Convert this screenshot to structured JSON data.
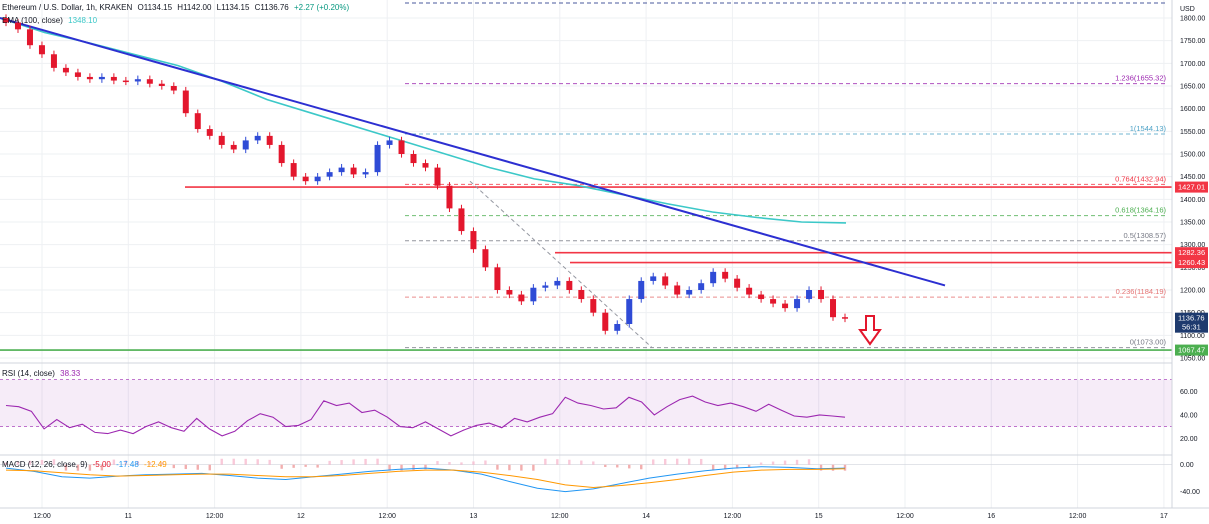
{
  "header": {
    "symbol": "Ethereum / U.S. Dollar, 1h, KRAKEN",
    "open": "O1134.15",
    "high": "H1142.00",
    "low": "L1134.15",
    "close": "C1136.76",
    "change": "+2.27 (+0.20%)",
    "ema_label": "EMA (100, close)",
    "ema_value": "1348.10"
  },
  "price_axis": {
    "currency": "USD",
    "ticks": [
      "1800.00",
      "1750.00",
      "1700.00",
      "1650.00",
      "1600.00",
      "1550.00",
      "1500.00",
      "1450.00",
      "1400.00",
      "1350.00",
      "1300.00",
      "1250.00",
      "1200.00",
      "1150.00",
      "1100.00",
      "1050.00"
    ]
  },
  "time_axis": {
    "ticks": [
      "12:00",
      "11",
      "12:00",
      "12",
      "12:00",
      "13",
      "12:00",
      "14",
      "12:00",
      "15",
      "12:00",
      "16",
      "12:00",
      "17"
    ]
  },
  "badges": [
    {
      "text": "1427.01",
      "color": "#f23645",
      "value": 1427.01
    },
    {
      "text": "1282.36",
      "color": "#f23645",
      "value": 1282.36
    },
    {
      "text": "1260.43",
      "color": "#f23645",
      "value": 1260.43
    },
    {
      "text": "1136.76",
      "sub": "56:31",
      "color": "#1e3a6e",
      "value": 1136.76
    },
    {
      "text": "1067.47",
      "color": "#4caf50",
      "value": 1067.47
    }
  ],
  "fib_levels": [
    {
      "label": "1.236(1655.32)",
      "value": 1655.32,
      "color": "#9c27b0"
    },
    {
      "label": "1(1544.13)",
      "value": 1544.13,
      "color": "#4fa3c7"
    },
    {
      "label": "0.764(1432.94)",
      "value": 1432.94,
      "color": "#f23645"
    },
    {
      "label": "0.618(1364.16)",
      "value": 1364.16,
      "color": "#4caf50"
    },
    {
      "label": "0.5(1308.57)",
      "value": 1308.57,
      "color": "#787b86"
    },
    {
      "label": "0.236(1184.19)",
      "value": 1184.19,
      "color": "#e57373"
    },
    {
      "label": "0(1073.00)",
      "value": 1073.0,
      "color": "#787b86"
    }
  ],
  "rsi": {
    "label": "RSI (14, close)",
    "value": "38.33",
    "ticks": [
      "60.00",
      "40.00",
      "20.00"
    ]
  },
  "macd": {
    "label": "MACD (12, 26, close, 9)",
    "v1": "-5.00",
    "v2": "-17.48",
    "v3": "-12.49",
    "ticks": [
      "0.00",
      "-40.00"
    ]
  },
  "colors": {
    "up": "#2f4bd6",
    "down": "#e3172d",
    "trendline": "#2c2fd1",
    "ema": "#3cc8c8",
    "support": "#4caf50",
    "resistance": "#f23645"
  },
  "chart_data": {
    "type": "candlestick",
    "title": "Ethereum / U.S. Dollar, 1h, KRAKEN",
    "ylabel": "USD",
    "ylim": [
      1050,
      1800
    ],
    "x": [
      "12:00",
      "11",
      "12:00",
      "12",
      "12:00",
      "13",
      "12:00",
      "14",
      "12:00",
      "15"
    ],
    "ohlc_close": [
      1790,
      1775,
      1740,
      1720,
      1690,
      1680,
      1670,
      1665,
      1670,
      1662,
      1660,
      1665,
      1655,
      1650,
      1640,
      1590,
      1555,
      1540,
      1520,
      1510,
      1530,
      1540,
      1520,
      1480,
      1450,
      1440,
      1450,
      1460,
      1470,
      1455,
      1460,
      1520,
      1530,
      1500,
      1480,
      1470,
      1430,
      1380,
      1330,
      1290,
      1250,
      1200,
      1190,
      1175,
      1205,
      1210,
      1220,
      1200,
      1180,
      1150,
      1110,
      1125,
      1180,
      1220,
      1230,
      1210,
      1190,
      1200,
      1215,
      1240,
      1225,
      1205,
      1190,
      1180,
      1170,
      1160,
      1180,
      1200,
      1180,
      1140,
      1137
    ],
    "ema_100": [
      1800,
      1768,
      1745,
      1720,
      1695,
      1660,
      1620,
      1590,
      1560,
      1530,
      1500,
      1470,
      1445,
      1430,
      1410,
      1390,
      1372,
      1360,
      1350,
      1348
    ],
    "trendline": {
      "from": 1800,
      "to": 1210
    },
    "support": 1067.47,
    "resistance": [
      1427.01,
      1282.36,
      1260.43
    ]
  }
}
